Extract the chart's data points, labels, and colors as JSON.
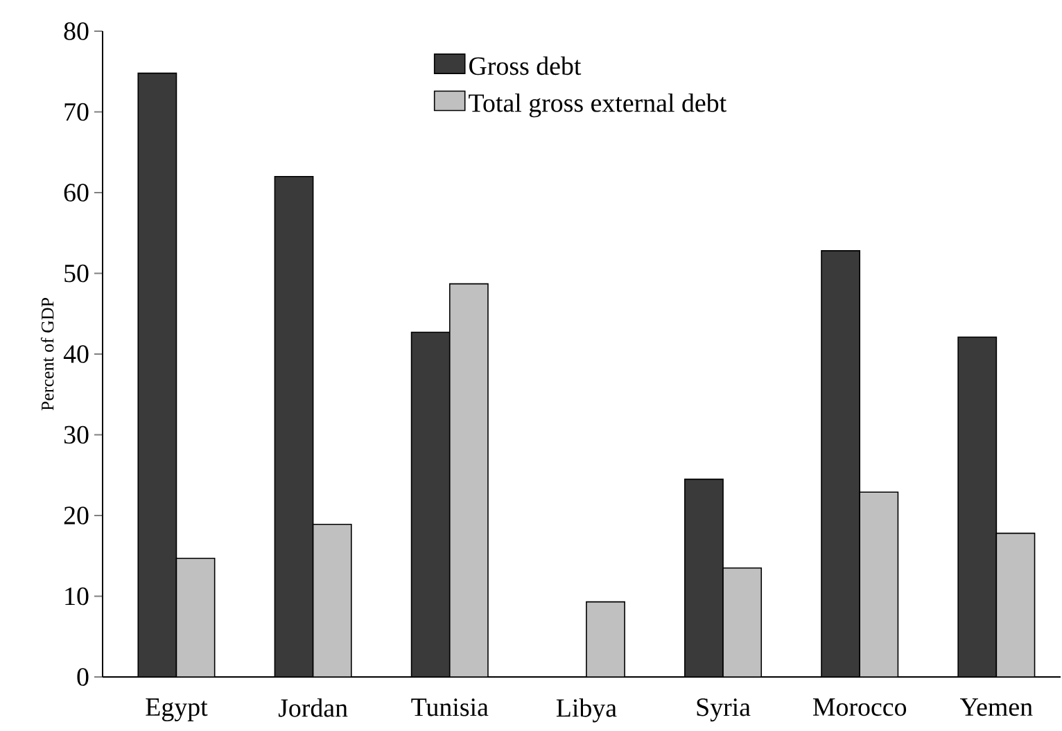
{
  "chart_data": {
    "type": "bar",
    "ylabel": "Percent of GDP",
    "categories": [
      "Egypt",
      "Jordan",
      "Tunisia",
      "Libya",
      "Syria",
      "Morocco",
      "Yemen"
    ],
    "series": [
      {
        "name": "Gross debt",
        "color": "#3a3a3a",
        "values": [
          74.8,
          62,
          42.7,
          null,
          24.5,
          52.8,
          42.1
        ]
      },
      {
        "name": "Total gross external debt",
        "color": "#c0c0c0",
        "values": [
          14.7,
          18.9,
          48.7,
          9.3,
          13.5,
          22.9,
          17.8
        ]
      }
    ],
    "ylim": [
      0,
      80
    ],
    "yticks": [
      0,
      10,
      20,
      30,
      40,
      50,
      60,
      70,
      80
    ],
    "legend": "top"
  }
}
